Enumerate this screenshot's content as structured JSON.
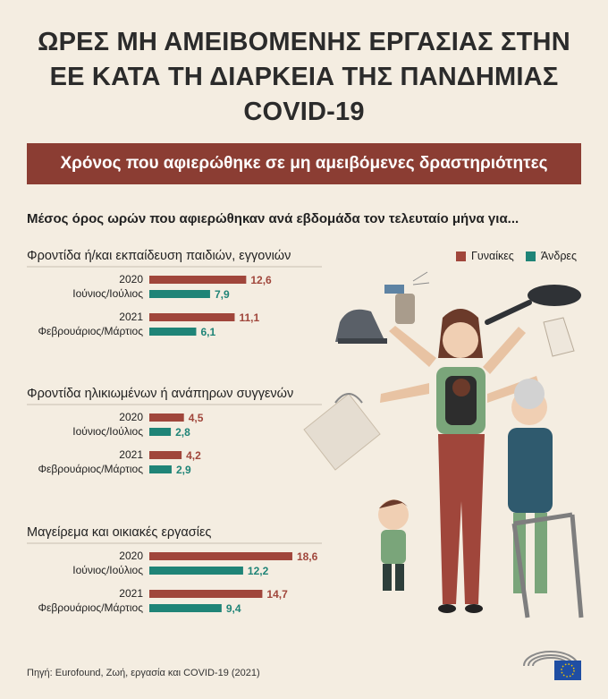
{
  "title": "ΩΡΕΣ ΜΗ ΑΜΕΙΒΟΜΕΝΗΣ ΕΡΓΑΣΙΑΣ ΣΤΗΝ\nΕΕ ΚΑΤΑ ΤΗ ΔΙΑΡΚΕΙΑ ΤΗΣ ΠΑΝΔΗΜΙΑΣ\nCOVID-19",
  "banner": "Χρόνος που αφιερώθηκε σε μη αμειβόμενες δραστηριότητες",
  "subtitle": "Μέσος όρος ωρών που αφιερώθηκαν ανά εβδομάδα τον τελευταίο μήνα για...",
  "source": "Πηγή: Eurofound, Ζωή, εργασία και COVID-19 (2021)",
  "colors": {
    "women": "#a0463b",
    "men": "#1f8477",
    "banner": "#8b3d33",
    "background": "#f4ede1"
  },
  "legend": {
    "women": "Γυναίκες",
    "men": "Άνδρες"
  },
  "illustration": "woman-multitasking-with-child-and-elderly-illustration",
  "chart_data": {
    "type": "bar",
    "orientation": "horizontal",
    "legend_position": "top-right",
    "sections": [
      {
        "title": "Φροντίδα ή/και εκπαίδευση παιδιών, εγγονιών",
        "groups": [
          {
            "year": "2020",
            "period": "Ιούνιος/Ιούλιος",
            "women": 12.6,
            "men": 7.9,
            "women_label": "12,6",
            "men_label": "7,9"
          },
          {
            "year": "2021",
            "period": "Φεβρουάριος/Μάρτιος",
            "women": 11.1,
            "men": 6.1,
            "women_label": "11,1",
            "men_label": "6,1"
          }
        ]
      },
      {
        "title": "Φροντίδα ηλικιωμένων ή ανάπηρων συγγενών",
        "groups": [
          {
            "year": "2020",
            "period": "Ιούνιος/Ιούλιος",
            "women": 4.5,
            "men": 2.8,
            "women_label": "4,5",
            "men_label": "2,8"
          },
          {
            "year": "2021",
            "period": "Φεβρουάριος/Μάρτιος",
            "women": 4.2,
            "men": 2.9,
            "women_label": "4,2",
            "men_label": "2,9"
          }
        ]
      },
      {
        "title": "Μαγείρεμα και οικιακές εργασίες",
        "groups": [
          {
            "year": "2020",
            "period": "Ιούνιος/Ιούλιος",
            "women": 18.6,
            "men": 12.2,
            "women_label": "18,6",
            "men_label": "12,2"
          },
          {
            "year": "2021",
            "period": "Φεβρουάριος/Μάρτιος",
            "women": 14.7,
            "men": 9.4,
            "women_label": "14,7",
            "men_label": "9,4"
          }
        ]
      }
    ]
  }
}
